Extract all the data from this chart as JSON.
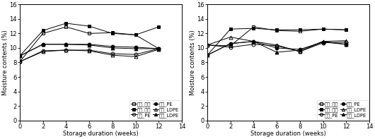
{
  "x": [
    0,
    2,
    4,
    6,
    8,
    10,
    12
  ],
  "left": {
    "dry_jong": [
      8.1,
      12.0,
      12.9,
      12.0,
      12.1,
      11.8,
      9.9
    ],
    "dry_PE": [
      8.1,
      9.6,
      9.7,
      9.7,
      9.2,
      9.1,
      9.9
    ],
    "dry_LDPE": [
      8.1,
      9.5,
      9.7,
      9.6,
      9.0,
      8.8,
      9.8
    ],
    "wet_jong": [
      8.9,
      12.4,
      13.4,
      13.0,
      12.0,
      11.8,
      12.9
    ],
    "wet_PE": [
      8.9,
      10.5,
      10.5,
      10.5,
      10.2,
      10.1,
      9.9
    ],
    "wet_LDPE": [
      8.9,
      10.5,
      10.5,
      10.4,
      10.0,
      9.9,
      9.9
    ]
  },
  "right": {
    "dry_jong": [
      10.4,
      10.3,
      12.9,
      12.4,
      12.3,
      12.6,
      12.5
    ],
    "dry_PE": [
      10.4,
      10.1,
      10.5,
      10.3,
      9.5,
      10.7,
      10.8
    ],
    "dry_LDPE": [
      10.4,
      11.5,
      10.9,
      10.4,
      9.5,
      10.9,
      11.0
    ],
    "wet_jong": [
      9.0,
      12.6,
      12.7,
      12.5,
      12.5,
      12.6,
      12.5
    ],
    "wet_PE": [
      9.0,
      10.6,
      10.9,
      10.0,
      9.8,
      10.8,
      10.5
    ],
    "wet_LDPE": [
      9.0,
      10.6,
      10.9,
      9.4,
      9.7,
      10.9,
      10.5
    ]
  },
  "ylim": [
    0,
    16
  ],
  "yticks": [
    0,
    2,
    4,
    6,
    8,
    10,
    12,
    14,
    16
  ],
  "xlim": [
    0,
    14
  ],
  "xticks": [
    0,
    2,
    4,
    6,
    8,
    10,
    12,
    14
  ],
  "xlabel": "Storage duration (weeks)",
  "ylabel": "Moisture contents (%)",
  "legend_dry": [
    "건식_종이",
    "건식_PE",
    "건식_LDPE"
  ],
  "legend_wet": [
    "습식_종이",
    "습식_PE",
    "습식_LDPE"
  ],
  "fontsize": 6,
  "tick_fontsize": 6,
  "legend_fontsize": 4.8
}
